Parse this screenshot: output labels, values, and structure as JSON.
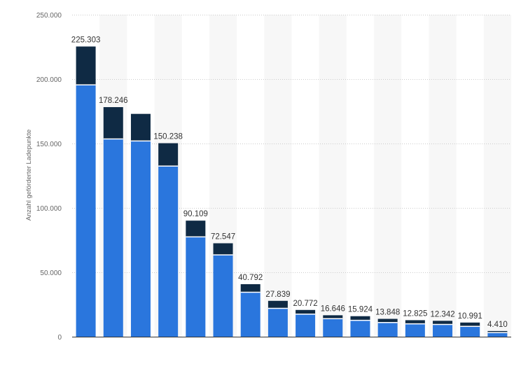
{
  "chart_data": {
    "type": "bar",
    "stacked": true,
    "title": "",
    "xlabel": "",
    "ylabel": "Anzahl geförderter Ladepunkte",
    "ylim": [
      0,
      250000
    ],
    "yticks": [
      0,
      50000,
      100000,
      150000,
      200000,
      250000
    ],
    "ytick_labels": [
      "0",
      "50.000",
      "100.000",
      "150.000",
      "200.000",
      "250.000"
    ],
    "grid": true,
    "legend": "none",
    "categories": [
      "",
      "",
      "",
      "",
      "",
      "",
      "",
      "",
      "",
      "",
      "",
      "",
      "",
      "",
      "",
      ""
    ],
    "series": [
      {
        "color": "#2a76dd",
        "values": [
          195500,
          153500,
          152000,
          132500,
          77500,
          63500,
          34500,
          22000,
          17500,
          14000,
          12700,
          11000,
          10000,
          9500,
          8000,
          3200
        ]
      },
      {
        "color": "#0f2a44",
        "values": [
          29803,
          24746,
          21000,
          17738,
          12609,
          9047,
          6292,
          5839,
          3272,
          2646,
          3224,
          2848,
          2825,
          2842,
          2991,
          1210
        ]
      }
    ],
    "totals": [
      225303,
      178246,
      173000,
      150238,
      90109,
      72547,
      40792,
      27839,
      20772,
      16646,
      15924,
      13848,
      12825,
      12342,
      10991,
      4410
    ],
    "data_labels": [
      "225.303",
      "178.246",
      "",
      "150.238",
      "90.109",
      "72.547",
      "40.792",
      "27.839",
      "20.772",
      "16.646",
      "15.924",
      "13.848",
      "12.825",
      "12.342",
      "10.991",
      "4.410"
    ]
  }
}
